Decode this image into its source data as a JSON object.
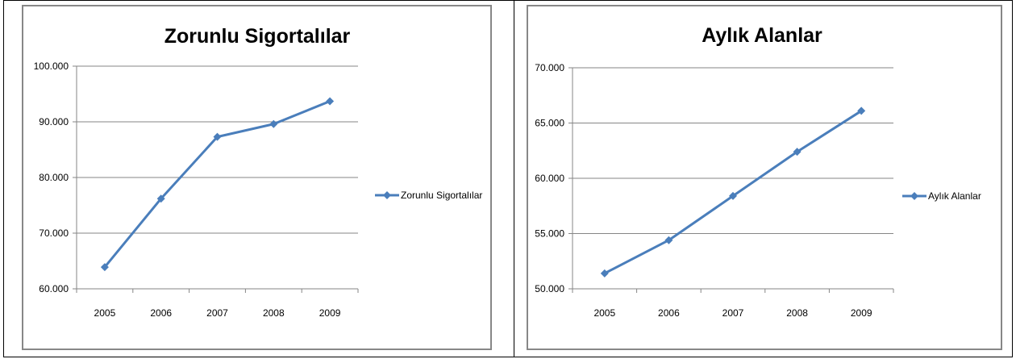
{
  "chart_data": [
    {
      "type": "line",
      "title": "Zorunlu Sigortalılar",
      "xlabel": "",
      "ylabel": "",
      "categories": [
        "2005",
        "2006",
        "2007",
        "2008",
        "2009"
      ],
      "y_tick_labels": [
        "60.000",
        "70.000",
        "80.000",
        "90.000",
        "100.000"
      ],
      "y_ticks": [
        60000,
        70000,
        80000,
        90000,
        100000
      ],
      "ylim": [
        60000,
        100000
      ],
      "grid": true,
      "legend_position": "right",
      "series": [
        {
          "name": "Zorunlu Sigortalılar",
          "color": "#4a7ebb",
          "marker": "diamond",
          "values": [
            63900,
            76200,
            87300,
            89600,
            93700
          ]
        }
      ]
    },
    {
      "type": "line",
      "title": "Aylık Alanlar",
      "xlabel": "",
      "ylabel": "",
      "categories": [
        "2005",
        "2006",
        "2007",
        "2008",
        "2009"
      ],
      "y_tick_labels": [
        "50.000",
        "55.000",
        "60.000",
        "65.000",
        "70.000"
      ],
      "y_ticks": [
        50000,
        55000,
        60000,
        65000,
        70000
      ],
      "ylim": [
        50000,
        70000
      ],
      "grid": true,
      "legend_position": "right",
      "series": [
        {
          "name": "Aylık Alanlar",
          "color": "#4a7ebb",
          "marker": "diamond",
          "values": [
            51400,
            54400,
            58400,
            62400,
            66100
          ]
        }
      ]
    }
  ]
}
